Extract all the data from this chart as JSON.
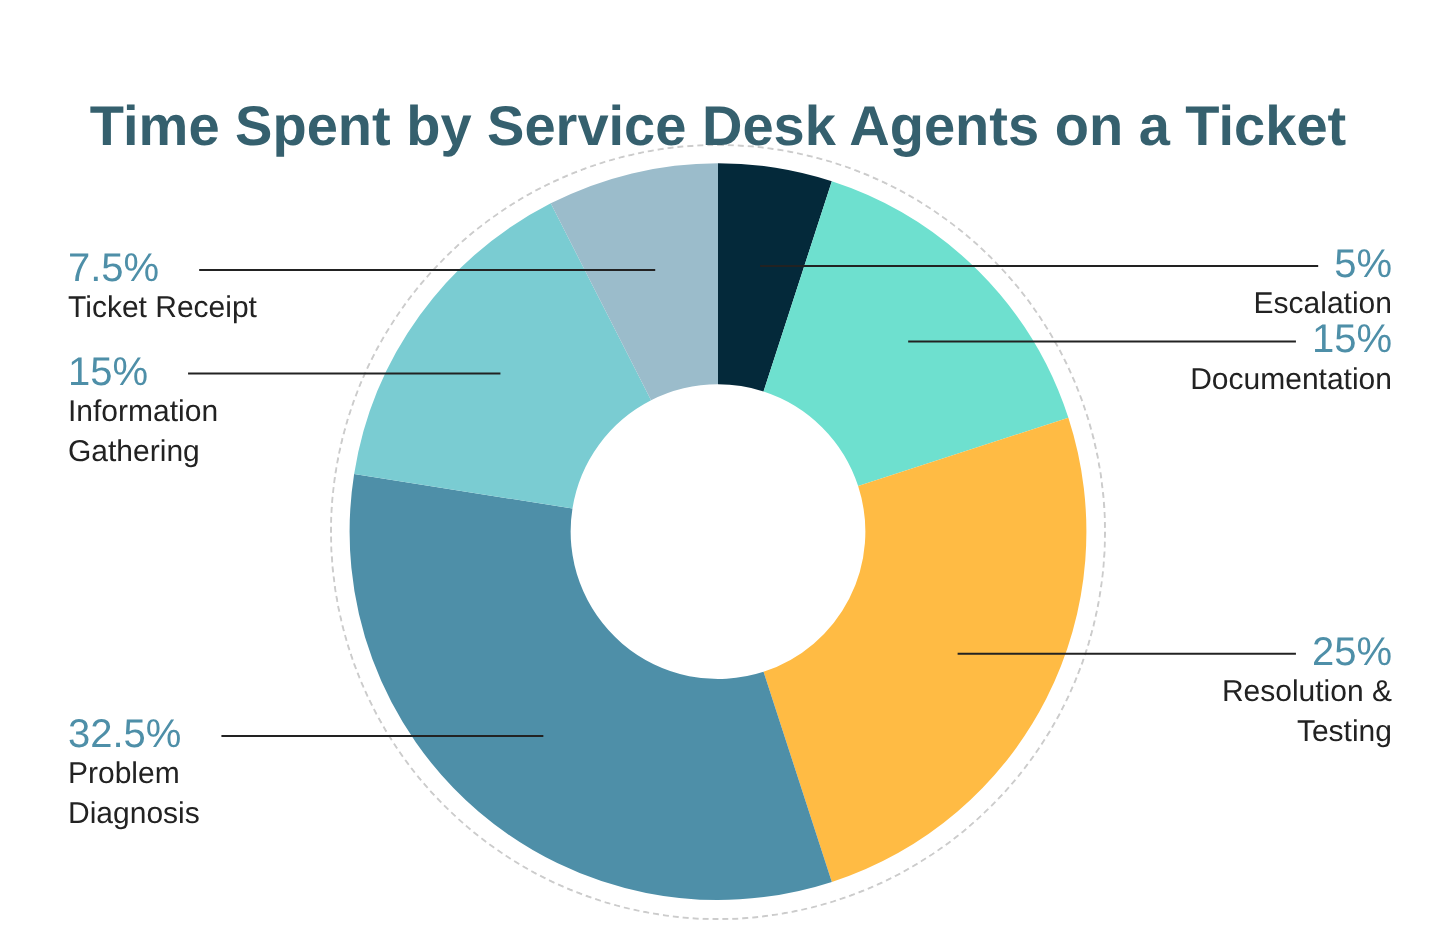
{
  "chart_data": {
    "type": "donut",
    "title": "Time Spent by Service Desk Agents on a Ticket",
    "categories": [
      "Escalation",
      "Documentation",
      "Resolution & Testing",
      "Problem Diagnosis",
      "Information Gathering",
      "Ticket Receipt"
    ],
    "values": [
      5,
      15,
      25,
      32.5,
      15,
      7.5
    ],
    "colors": [
      "#04293a",
      "#6ee0cf",
      "#ffbb44",
      "#4e8fa8",
      "#7accd2",
      "#9bbccb"
    ],
    "value_labels": [
      "5%",
      "15%",
      "25%",
      "32.5%",
      "15%",
      "7.5%"
    ],
    "legend": false
  }
}
